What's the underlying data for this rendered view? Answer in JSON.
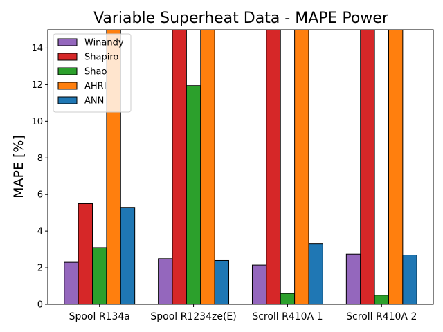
{
  "chart_data": {
    "type": "bar",
    "title": "Variable Superheat Data - MAPE Power",
    "xlabel": "",
    "ylabel": "MAPE [%]",
    "ylim": [
      0,
      15
    ],
    "yticks": [
      0,
      2,
      4,
      6,
      8,
      10,
      12,
      14
    ],
    "grid": false,
    "legend_position": "top-left",
    "categories": [
      "Spool R134a",
      "Spool R1234ze(E)",
      "Scroll R410A 1",
      "Scroll R410A 2"
    ],
    "series": [
      {
        "name": "Winandy",
        "color": "#9467bd",
        "values": [
          2.3,
          2.5,
          2.15,
          2.75
        ]
      },
      {
        "name": "Shapiro",
        "color": "#d62728",
        "values": [
          5.5,
          15.0,
          15.0,
          15.0
        ]
      },
      {
        "name": "Shao",
        "color": "#2ca02c",
        "values": [
          3.1,
          11.95,
          0.6,
          0.5
        ]
      },
      {
        "name": "AHRI",
        "color": "#ff7f0e",
        "values": [
          15.0,
          15.0,
          15.0,
          15.0
        ]
      },
      {
        "name": "ANN",
        "color": "#1f77b4",
        "values": [
          5.3,
          2.4,
          3.3,
          2.7
        ]
      }
    ]
  }
}
